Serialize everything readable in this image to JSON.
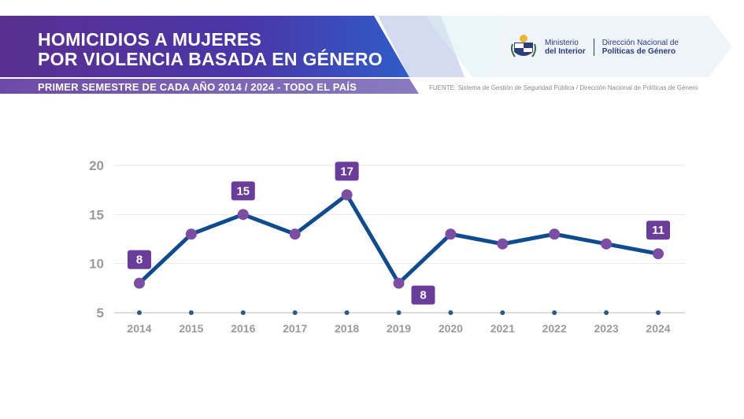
{
  "header": {
    "title_line1": "HOMICIDIOS A MUJERES",
    "title_line2": "POR VIOLENCIA BASADA EN GÉNERO",
    "subtitle": "PRIMER SEMESTRE DE CADA AÑO 2014 / 2024 - TODO EL PAÍS",
    "source": "FUENTE: Sistema de Gestión de Seguridad Pública / Dirección Nacional de Políticas de Género",
    "ministry_line1": "Ministerio",
    "ministry_line2": "del Interior",
    "direccion_line1": "Dirección Nacional de",
    "direccion_line2": "Políticas de Género"
  },
  "colors": {
    "purple": "#6a3d9a",
    "banner_dark": "#4b2a8c",
    "banner_blue": "#3a58c4",
    "line": "#0f4c8f",
    "marker": "#7b4ea3",
    "label_box": "#6a3d9a"
  },
  "chart_data": {
    "type": "line",
    "title": "HOMICIDIOS A MUJERES POR VIOLENCIA BASADA EN GÉNERO",
    "x": [
      "2014",
      "2015",
      "2016",
      "2017",
      "2018",
      "2019",
      "2020",
      "2021",
      "2022",
      "2023",
      "2024"
    ],
    "y": [
      8,
      13,
      15,
      13,
      17,
      8,
      13,
      12,
      13,
      12,
      11
    ],
    "labeled_points": [
      {
        "index": 0,
        "value": "8",
        "pos": "above"
      },
      {
        "index": 2,
        "value": "15",
        "pos": "above"
      },
      {
        "index": 4,
        "value": "17",
        "pos": "above"
      },
      {
        "index": 5,
        "value": "8",
        "pos": "below-right"
      },
      {
        "index": 10,
        "value": "11",
        "pos": "above"
      }
    ],
    "yticks": [
      5,
      10,
      15,
      20
    ],
    "ylim": [
      5,
      20
    ],
    "xlabel": "",
    "ylabel": "",
    "grid": true
  }
}
